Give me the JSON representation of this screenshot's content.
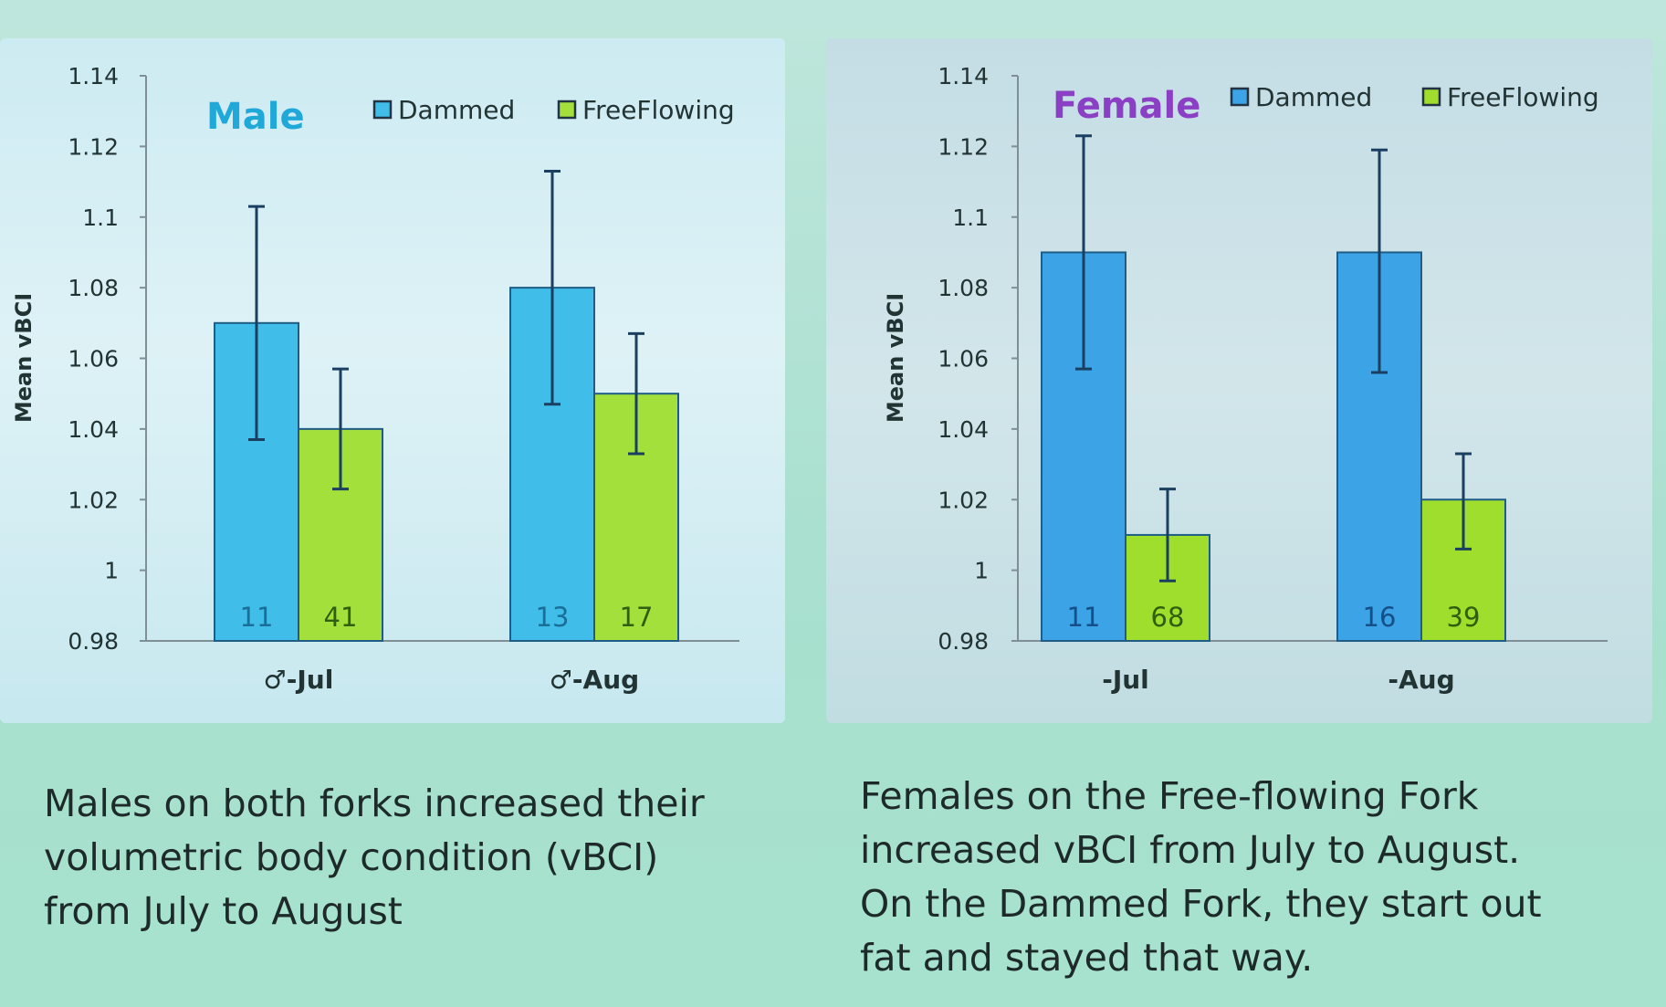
{
  "chart_data": [
    {
      "type": "bar",
      "title": "Male",
      "title_color": "#1fa8d8",
      "xlabel": "",
      "ylabel": "Mean vBCI",
      "categories": [
        "♂-Jul",
        "♂-Aug"
      ],
      "ylim": [
        0.98,
        1.14
      ],
      "yticks": [
        "0.98",
        "1",
        "1.02",
        "1.04",
        "1.06",
        "1.08",
        "1.1",
        "1.12",
        "1.14"
      ],
      "legend_position": "top-right",
      "series": [
        {
          "name": "Dammed",
          "color": "#41bde9",
          "values": [
            1.07,
            1.08
          ],
          "error_low": [
            1.037,
            1.047
          ],
          "error_high": [
            1.103,
            1.113
          ],
          "n_labels": [
            "11",
            "13"
          ]
        },
        {
          "name": "FreeFlowing",
          "color": "#a4e03c",
          "values": [
            1.04,
            1.05
          ],
          "error_low": [
            1.023,
            1.033
          ],
          "error_high": [
            1.057,
            1.067
          ],
          "n_labels": [
            "41",
            "17"
          ]
        }
      ]
    },
    {
      "type": "bar",
      "title": "Female",
      "title_color": "#8a3fc4",
      "xlabel": "",
      "ylabel": "Mean vBCI",
      "categories": [
        "-Jul",
        "-Aug"
      ],
      "ylim": [
        0.98,
        1.14
      ],
      "yticks": [
        "0.98",
        "1",
        "1.02",
        "1.04",
        "1.06",
        "1.08",
        "1.1",
        "1.12",
        "1.14"
      ],
      "legend_position": "top-right",
      "series": [
        {
          "name": "Dammed",
          "color": "#3ba3e6",
          "values": [
            1.09,
            1.09
          ],
          "error_low": [
            1.057,
            1.056
          ],
          "error_high": [
            1.123,
            1.119
          ],
          "n_labels": [
            "11",
            "16"
          ]
        },
        {
          "name": "FreeFlowing",
          "color": "#9fde2c",
          "values": [
            1.01,
            1.02
          ],
          "error_low": [
            0.997,
            1.006
          ],
          "error_high": [
            1.023,
            1.033
          ],
          "n_labels": [
            "68",
            "39"
          ]
        }
      ]
    }
  ],
  "captions": {
    "male": [
      "Males on both forks increased their",
      "volumetric body condition (vBCI)",
      "from July to August"
    ],
    "female": [
      "Females on the Free-flowing Fork",
      "increased vBCI from July to August.",
      "On the Dammed Fork, they start out",
      "fat and stayed that way."
    ]
  }
}
